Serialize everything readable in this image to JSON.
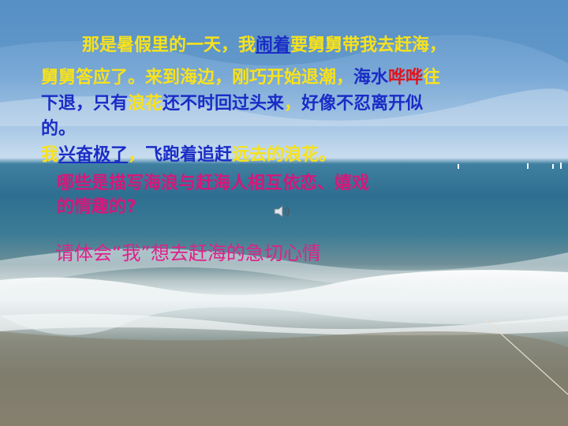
{
  "paragraph": {
    "l1": [
      "那是暑假里的一天，我",
      "闹着",
      "要舅舅带我去赶海，"
    ],
    "l2": [
      "舅舅答应了。来到海边，刚巧开始退潮，",
      "海水",
      "哗哗",
      "往"
    ],
    "l3": [
      "下退，只有",
      "浪花",
      "还不时回过头来",
      "，",
      "好像不忍离开似"
    ],
    "l4": [
      "的。"
    ],
    "l5": [
      "我",
      "兴奋极了",
      "，",
      "飞跑着追赶",
      "远去的浪花。"
    ]
  },
  "question1": {
    "line1": "哪些是描写海浪与赶海人相互依恋、嬉戏",
    "line2": "的情趣的?"
  },
  "question2": "请体会“我”想去赶海的急切心情",
  "icons": {
    "speaker": "speaker-icon"
  },
  "colors": {
    "yellow": "#f7e21c",
    "blue": "#1a2cc6",
    "red": "#e0141c",
    "magenta": "#d4187a"
  }
}
